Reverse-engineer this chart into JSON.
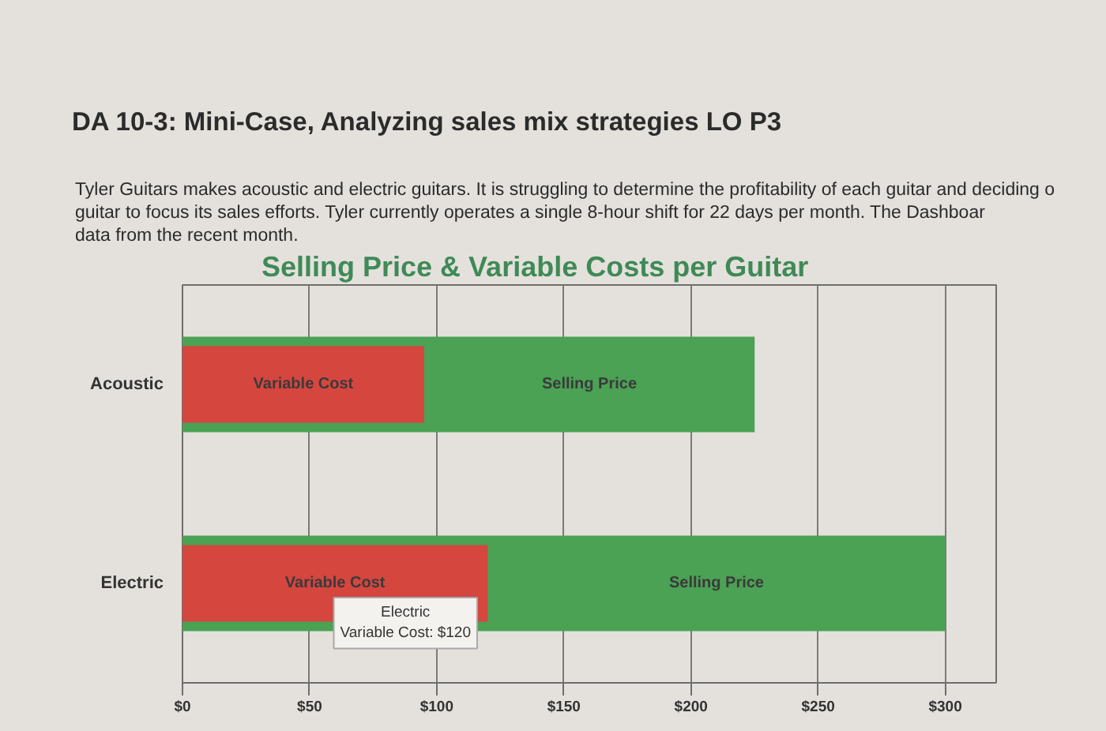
{
  "chart_data": {
    "type": "bar",
    "orientation": "horizontal",
    "title": "Selling Price & Variable Costs per Guitar",
    "categories": [
      "Acoustic",
      "Electric"
    ],
    "series": [
      {
        "name": "Selling Price",
        "color": "#4ba154",
        "values": [
          225,
          300
        ]
      },
      {
        "name": "Variable Cost",
        "color": "#d5463f",
        "values": [
          95,
          120
        ]
      }
    ],
    "xlim": [
      0,
      320
    ],
    "xticks": [
      {
        "value": 0,
        "label": "$0"
      },
      {
        "value": 50,
        "label": "$50"
      },
      {
        "value": 100,
        "label": "$100"
      },
      {
        "value": 150,
        "label": "$150"
      },
      {
        "value": 200,
        "label": "$200"
      },
      {
        "value": 250,
        "label": "$250"
      },
      {
        "value": 300,
        "label": "$300"
      }
    ],
    "grid": "x",
    "annotations": [
      "DA 10-3: Mini-Case, Analyzing sales mix strategies LO P3",
      "Tyler Guitars makes acoustic and electric guitars. It is struggling to determine the profitability of each guitar and deciding o\nguitar to focus its sales efforts. Tyler currently operates a single 8-hour shift for 22 days per month. The Dashboar\ndata from the recent month.",
      {
        "text": "Electric\nVariable Cost: $120",
        "x": 120,
        "y": "Electric"
      }
    ]
  }
}
